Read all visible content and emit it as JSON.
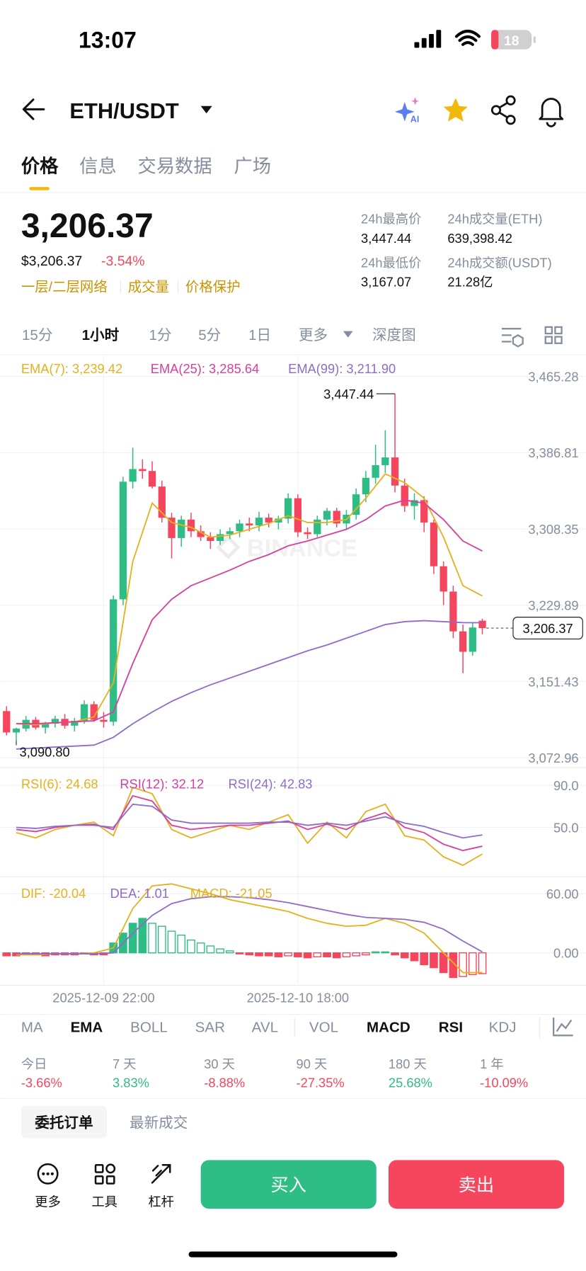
{
  "status": {
    "time": "13:07",
    "battery": "18"
  },
  "header": {
    "pair": "ETH/USDT",
    "ai_icon": "AI"
  },
  "tabs": [
    "价格",
    "信息",
    "交易数据",
    "广场"
  ],
  "ticker": {
    "price": "3,206.37",
    "usd": "$3,206.37",
    "change": "-3.54%",
    "tags": [
      "一层/二层网络",
      "成交量",
      "价格保护"
    ],
    "stats": [
      {
        "label": "24h最高价",
        "value": "3,447.44"
      },
      {
        "label": "24h成交量(ETH)",
        "value": "639,398.42"
      },
      {
        "label": "24h最低价",
        "value": "3,167.07"
      },
      {
        "label": "24h成交额(USDT)",
        "value": "21.28亿"
      }
    ]
  },
  "intervals": [
    "15分",
    "1小时",
    "1分",
    "5分",
    "1日",
    "更多",
    "深度图"
  ],
  "chart": {
    "watermark": "BINANCE",
    "ylim": [
      3065.5,
      3486.1
    ],
    "yticks": [
      {
        "value": 3465.28,
        "label": "3,465.28"
      },
      {
        "value": 3386.81,
        "label": "3,386.81"
      },
      {
        "value": 3308.35,
        "label": "3,308.35"
      },
      {
        "value": 3229.89,
        "label": "3,229.89"
      },
      {
        "value": 3151.43,
        "label": "3,151.43"
      },
      {
        "value": 3072.96,
        "label": "3,072.96"
      }
    ],
    "candles": {
      "open": [
        3121,
        3099,
        3103,
        3112,
        3104,
        3108,
        3113,
        3106,
        3111,
        3128,
        3112,
        3110,
        3236,
        3357,
        3370,
        3368,
        3352,
        3320,
        3299,
        3318,
        3306,
        3300,
        3296,
        3303,
        3306,
        3314,
        3312,
        3320,
        3315,
        3319,
        3340,
        3305,
        3303,
        3318,
        3327,
        3314,
        3323,
        3344,
        3361,
        3374,
        3382,
        3353,
        3332,
        3338,
        3315,
        3270,
        3244,
        3203,
        3182,
        3214
      ],
      "high": [
        3126,
        3104,
        3116,
        3115,
        3110,
        3116,
        3118,
        3114,
        3132,
        3131,
        3120,
        3240,
        3362,
        3392,
        3380,
        3378,
        3358,
        3325,
        3322,
        3325,
        3312,
        3305,
        3308,
        3310,
        3318,
        3320,
        3326,
        3324,
        3322,
        3345,
        3344,
        3310,
        3322,
        3330,
        3330,
        3328,
        3350,
        3368,
        3395,
        3410,
        3447.44,
        3360,
        3345,
        3342,
        3318,
        3275,
        3250,
        3210,
        3212,
        3216
      ],
      "low": [
        3096,
        3090.8,
        3100,
        3102,
        3098,
        3104,
        3103,
        3100,
        3108,
        3110,
        3104,
        3106,
        3230,
        3350,
        3360,
        3350,
        3315,
        3278,
        3290,
        3300,
        3296,
        3288,
        3292,
        3298,
        3300,
        3306,
        3306,
        3310,
        3308,
        3314,
        3300,
        3298,
        3300,
        3312,
        3310,
        3308,
        3318,
        3336,
        3355,
        3366,
        3346,
        3326,
        3318,
        3305,
        3262,
        3230,
        3196,
        3160,
        3178,
        3200
      ],
      "close": [
        3099,
        3103,
        3112,
        3104,
        3108,
        3113,
        3106,
        3111,
        3128,
        3112,
        3110,
        3236,
        3357,
        3370,
        3368,
        3352,
        3320,
        3299,
        3318,
        3306,
        3300,
        3296,
        3303,
        3306,
        3314,
        3312,
        3320,
        3315,
        3319,
        3340,
        3305,
        3303,
        3318,
        3327,
        3314,
        3323,
        3344,
        3361,
        3374,
        3382,
        3353,
        3332,
        3338,
        3315,
        3270,
        3244,
        3203,
        3182,
        3207,
        3206.37
      ]
    },
    "high_mark": {
      "index": 40,
      "value": 3447.44,
      "label": "3,447.44"
    },
    "low_mark": {
      "index": 1,
      "value": 3090.8,
      "label": "3,090.80"
    },
    "last_price": {
      "value": 3206.37,
      "label": "3,206.37"
    },
    "ema": {
      "x": [
        1,
        3,
        5,
        7,
        9,
        11,
        13,
        15,
        17,
        19,
        21,
        23,
        25,
        27,
        29,
        31,
        33,
        35,
        37,
        39,
        41,
        43,
        45,
        47,
        49
      ],
      "series": [
        {
          "legend": "EMA(7): 3,239.42",
          "color": "#E3B21E",
          "values": [
            3108,
            3107,
            3109,
            3110,
            3115,
            3150,
            3275,
            3335,
            3315,
            3310,
            3300,
            3302,
            3308,
            3314,
            3322,
            3315,
            3315,
            3318,
            3340,
            3365,
            3356,
            3340,
            3300,
            3250,
            3239.42
          ]
        },
        {
          "legend": "EMA(25): 3,285.64",
          "color": "#D6409F",
          "values": [
            3108,
            3108,
            3109,
            3110,
            3111,
            3120,
            3170,
            3215,
            3236,
            3250,
            3258,
            3266,
            3275,
            3282,
            3291,
            3296,
            3302,
            3308,
            3318,
            3332,
            3338,
            3335,
            3318,
            3296,
            3285.64
          ]
        },
        {
          "legend": "EMA(99): 3,211.90",
          "color": "#8F6CC8",
          "values": [
            3082,
            3083,
            3084,
            3085,
            3086,
            3094,
            3108,
            3120,
            3131,
            3140,
            3148,
            3155,
            3162,
            3169,
            3176,
            3183,
            3189,
            3196,
            3203,
            3210,
            3213,
            3214,
            3213,
            3212,
            3211.9
          ]
        }
      ]
    },
    "rsi": {
      "ylim": [
        5.4,
        105.4
      ],
      "yticks": [
        {
          "value": 90,
          "label": "90.0"
        },
        {
          "value": 50,
          "label": "50.0"
        }
      ],
      "x": [
        1,
        3,
        5,
        7,
        9,
        11,
        13,
        15,
        17,
        19,
        21,
        23,
        25,
        27,
        29,
        31,
        33,
        35,
        37,
        39,
        41,
        43,
        45,
        47,
        49
      ],
      "series": [
        {
          "legend": "RSI(6): 24.68",
          "color": "#E3B21E",
          "values": [
            45,
            40,
            48,
            52,
            55,
            42,
            88,
            82,
            48,
            40,
            46,
            52,
            48,
            55,
            62,
            35,
            55,
            40,
            65,
            72,
            42,
            38,
            22,
            14,
            24.68
          ]
        },
        {
          "legend": "RSI(12): 32.12",
          "color": "#D6409F",
          "values": [
            48,
            46,
            50,
            52,
            53,
            48,
            80,
            75,
            52,
            48,
            50,
            52,
            52,
            54,
            56,
            48,
            53,
            48,
            58,
            64,
            50,
            45,
            34,
            28,
            32.12
          ]
        },
        {
          "legend": "RSI(24): 42.83",
          "color": "#8F6CC8",
          "values": [
            50,
            49,
            51,
            52,
            52,
            50,
            72,
            70,
            57,
            54,
            54,
            54,
            54,
            55,
            55,
            52,
            54,
            52,
            56,
            60,
            54,
            51,
            45,
            40,
            42.83
          ]
        }
      ]
    },
    "macd": {
      "ylim": [
        -31.2,
        75.6
      ],
      "yticks": [
        {
          "value": 60,
          "label": "60.00"
        },
        {
          "value": 0,
          "label": "0.00"
        }
      ],
      "legend": "MACD: -21.05",
      "legend_color": "#E3B21E",
      "histogram": [
        -3,
        -3,
        -2,
        -2,
        -3,
        -2,
        -2,
        -2,
        -1,
        -2,
        -2,
        10,
        20,
        30,
        35,
        30,
        27,
        22,
        18,
        13,
        10,
        7,
        4,
        2,
        -1,
        -2,
        -3,
        -3,
        -4,
        -3,
        -4,
        -5,
        -4,
        -4,
        -5,
        -4,
        -3,
        -2,
        1,
        1,
        -2,
        -5,
        -8,
        -12,
        -15,
        -20,
        -25,
        -24,
        -22,
        -21.05
      ],
      "x": [
        1,
        3,
        5,
        7,
        9,
        11,
        13,
        15,
        17,
        19,
        21,
        23,
        25,
        27,
        29,
        31,
        33,
        35,
        37,
        39,
        41,
        43,
        45,
        47,
        49
      ],
      "series": [
        {
          "legend": "DIF: -20.04",
          "color": "#E3B21E",
          "values": [
            -2,
            -2,
            -1,
            -1,
            0,
            5,
            45,
            68,
            70,
            65,
            60,
            54,
            50,
            46,
            42,
            35,
            30,
            27,
            28,
            35,
            30,
            20,
            0,
            -20,
            -20.04
          ]
        },
        {
          "legend": "DEA: 1.01",
          "color": "#8F6CC8",
          "values": [
            -1,
            -1,
            -1,
            -1,
            -1,
            0,
            20,
            38,
            50,
            55,
            57,
            57,
            56,
            54,
            51,
            47,
            43,
            39,
            36,
            35,
            34,
            31,
            24,
            12,
            1.01
          ]
        }
      ]
    },
    "x_labels": [
      {
        "index": 10,
        "label": "2025-12-09 22:00"
      },
      {
        "index": 30,
        "label": "2025-12-10 18:00"
      }
    ]
  },
  "indicators": [
    "MA",
    "EMA",
    "BOLL",
    "SAR",
    "AVL",
    "VOL",
    "MACD",
    "RSI",
    "KDJ"
  ],
  "performance": [
    {
      "label": "今日",
      "value": "-3.66%"
    },
    {
      "label": "7 天",
      "value": "3.83%"
    },
    {
      "label": "30 天",
      "value": "-8.88%"
    },
    {
      "label": "90 天",
      "value": "-27.35%"
    },
    {
      "label": "180 天",
      "value": "25.68%"
    },
    {
      "label": "1 年",
      "value": "-10.09%"
    }
  ],
  "order_tabs": [
    "委托订单",
    "最新成交"
  ],
  "toolbar": [
    "更多",
    "工具",
    "杠杆"
  ],
  "buttons": {
    "buy": "买入",
    "sell": "卖出"
  }
}
